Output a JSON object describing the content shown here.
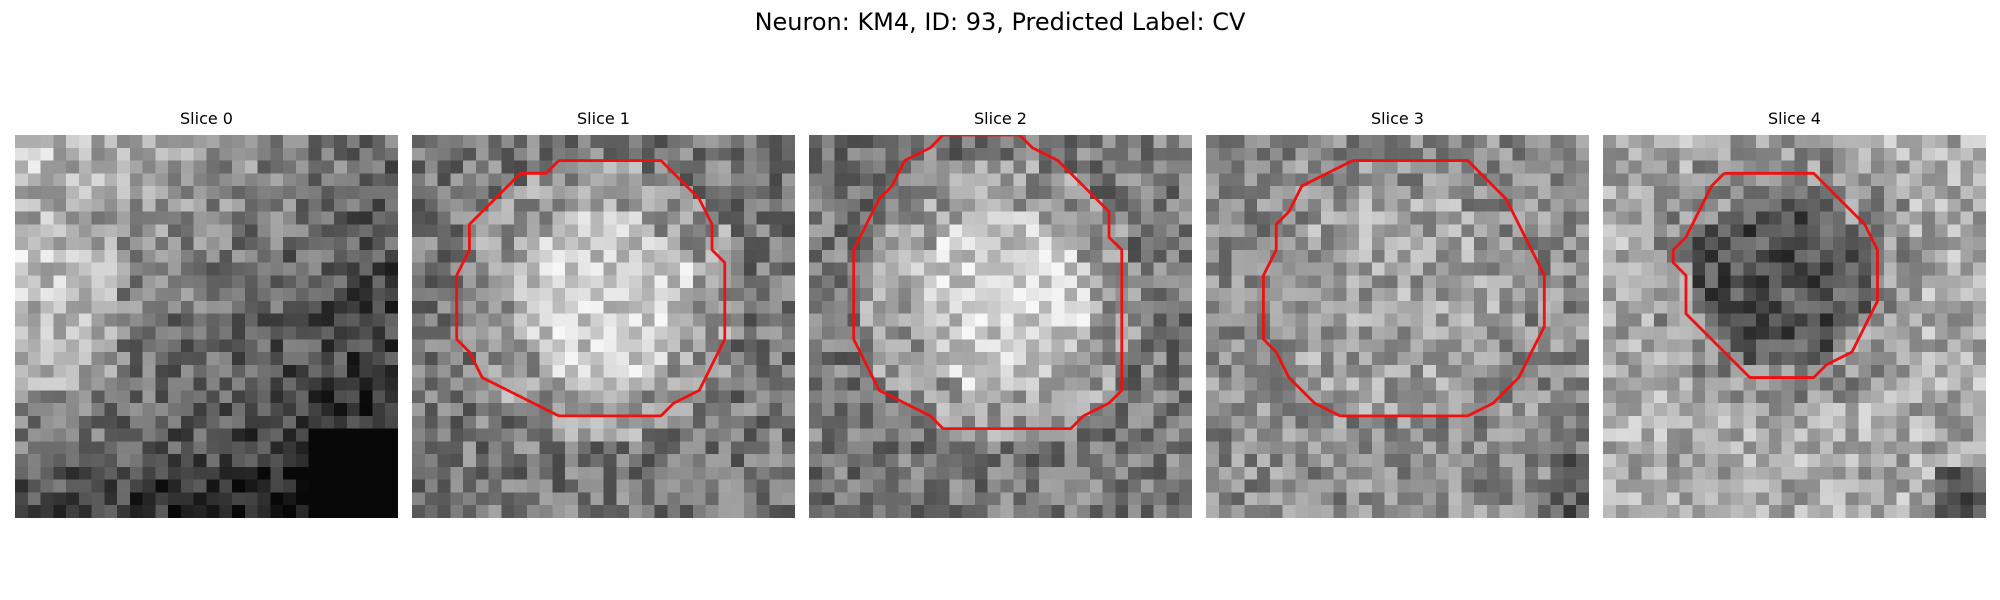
{
  "figure": {
    "title": "Neuron: KM4, ID: 93, Predicted Label: CV"
  },
  "panels": [
    {
      "title": "Slice 0",
      "has_contour": false,
      "seed": 11,
      "pattern": "bright-upper-left-dark-lower-right",
      "contour": []
    },
    {
      "title": "Slice 1",
      "has_contour": true,
      "seed": 23,
      "pattern": "bright-center",
      "contour": [
        [
          11,
          1.5
        ],
        [
          19,
          1.5
        ],
        [
          20,
          2.5
        ],
        [
          22,
          4.5
        ],
        [
          23,
          6.5
        ],
        [
          23,
          8.5
        ],
        [
          24,
          9.5
        ],
        [
          24,
          15.5
        ],
        [
          23,
          17.5
        ],
        [
          22,
          19.5
        ],
        [
          20,
          20.5
        ],
        [
          19,
          21.5
        ],
        [
          11,
          21.5
        ],
        [
          9,
          20.5
        ],
        [
          7,
          19.5
        ],
        [
          5,
          18.5
        ],
        [
          4,
          16.5
        ],
        [
          3,
          15.5
        ],
        [
          3,
          10.5
        ],
        [
          4,
          8.5
        ],
        [
          4,
          6.5
        ],
        [
          5,
          5.5
        ],
        [
          6,
          4.5
        ],
        [
          8,
          2.5
        ],
        [
          10,
          2.5
        ]
      ]
    },
    {
      "title": "Slice 2",
      "has_contour": true,
      "seed": 37,
      "pattern": "bright-center",
      "contour": [
        [
          10,
          -0.5
        ],
        [
          16,
          -0.5
        ],
        [
          17,
          0.5
        ],
        [
          19,
          1.5
        ],
        [
          21,
          3.5
        ],
        [
          23,
          5.5
        ],
        [
          23,
          7.5
        ],
        [
          24,
          8.5
        ],
        [
          24,
          19.5
        ],
        [
          23,
          20.5
        ],
        [
          21,
          21.5
        ],
        [
          20,
          22.5
        ],
        [
          10,
          22.5
        ],
        [
          9,
          21.5
        ],
        [
          7,
          20.5
        ],
        [
          5,
          19.5
        ],
        [
          4,
          17.5
        ],
        [
          3,
          15.5
        ],
        [
          3,
          8.5
        ],
        [
          4,
          6.5
        ],
        [
          5,
          4.5
        ],
        [
          6,
          3.5
        ],
        [
          7,
          1.5
        ],
        [
          9,
          0.5
        ]
      ]
    },
    {
      "title": "Slice 3",
      "has_contour": true,
      "seed": 53,
      "pattern": "mottled",
      "contour": [
        [
          11,
          1.5
        ],
        [
          20,
          1.5
        ],
        [
          21,
          2.5
        ],
        [
          23,
          4.5
        ],
        [
          24,
          6.5
        ],
        [
          25,
          8.5
        ],
        [
          26,
          10.5
        ],
        [
          26,
          14.5
        ],
        [
          25,
          16.5
        ],
        [
          24,
          18.5
        ],
        [
          22,
          20.5
        ],
        [
          20,
          21.5
        ],
        [
          10,
          21.5
        ],
        [
          8,
          20.5
        ],
        [
          6,
          18.5
        ],
        [
          5,
          16.5
        ],
        [
          4,
          15.5
        ],
        [
          4,
          10.5
        ],
        [
          5,
          8.5
        ],
        [
          5,
          6.5
        ],
        [
          6,
          5.5
        ],
        [
          7,
          3.5
        ],
        [
          9,
          2.5
        ]
      ]
    },
    {
      "title": "Slice 4",
      "has_contour": true,
      "seed": 71,
      "pattern": "dark-center",
      "contour": [
        [
          9,
          2.5
        ],
        [
          16,
          2.5
        ],
        [
          17,
          3.5
        ],
        [
          18,
          4.5
        ],
        [
          20,
          6.5
        ],
        [
          21,
          8.5
        ],
        [
          21,
          12.5
        ],
        [
          20,
          14.5
        ],
        [
          19,
          16.5
        ],
        [
          17,
          17.5
        ],
        [
          16,
          18.5
        ],
        [
          11,
          18.5
        ],
        [
          10,
          17.5
        ],
        [
          9,
          16.5
        ],
        [
          7,
          14.5
        ],
        [
          6,
          13.5
        ],
        [
          6,
          10.5
        ],
        [
          5,
          9.5
        ],
        [
          5,
          8.5
        ],
        [
          6,
          7.5
        ],
        [
          7,
          5.5
        ],
        [
          8,
          3.5
        ]
      ]
    }
  ],
  "colors": {
    "contour": "#ee1111"
  }
}
